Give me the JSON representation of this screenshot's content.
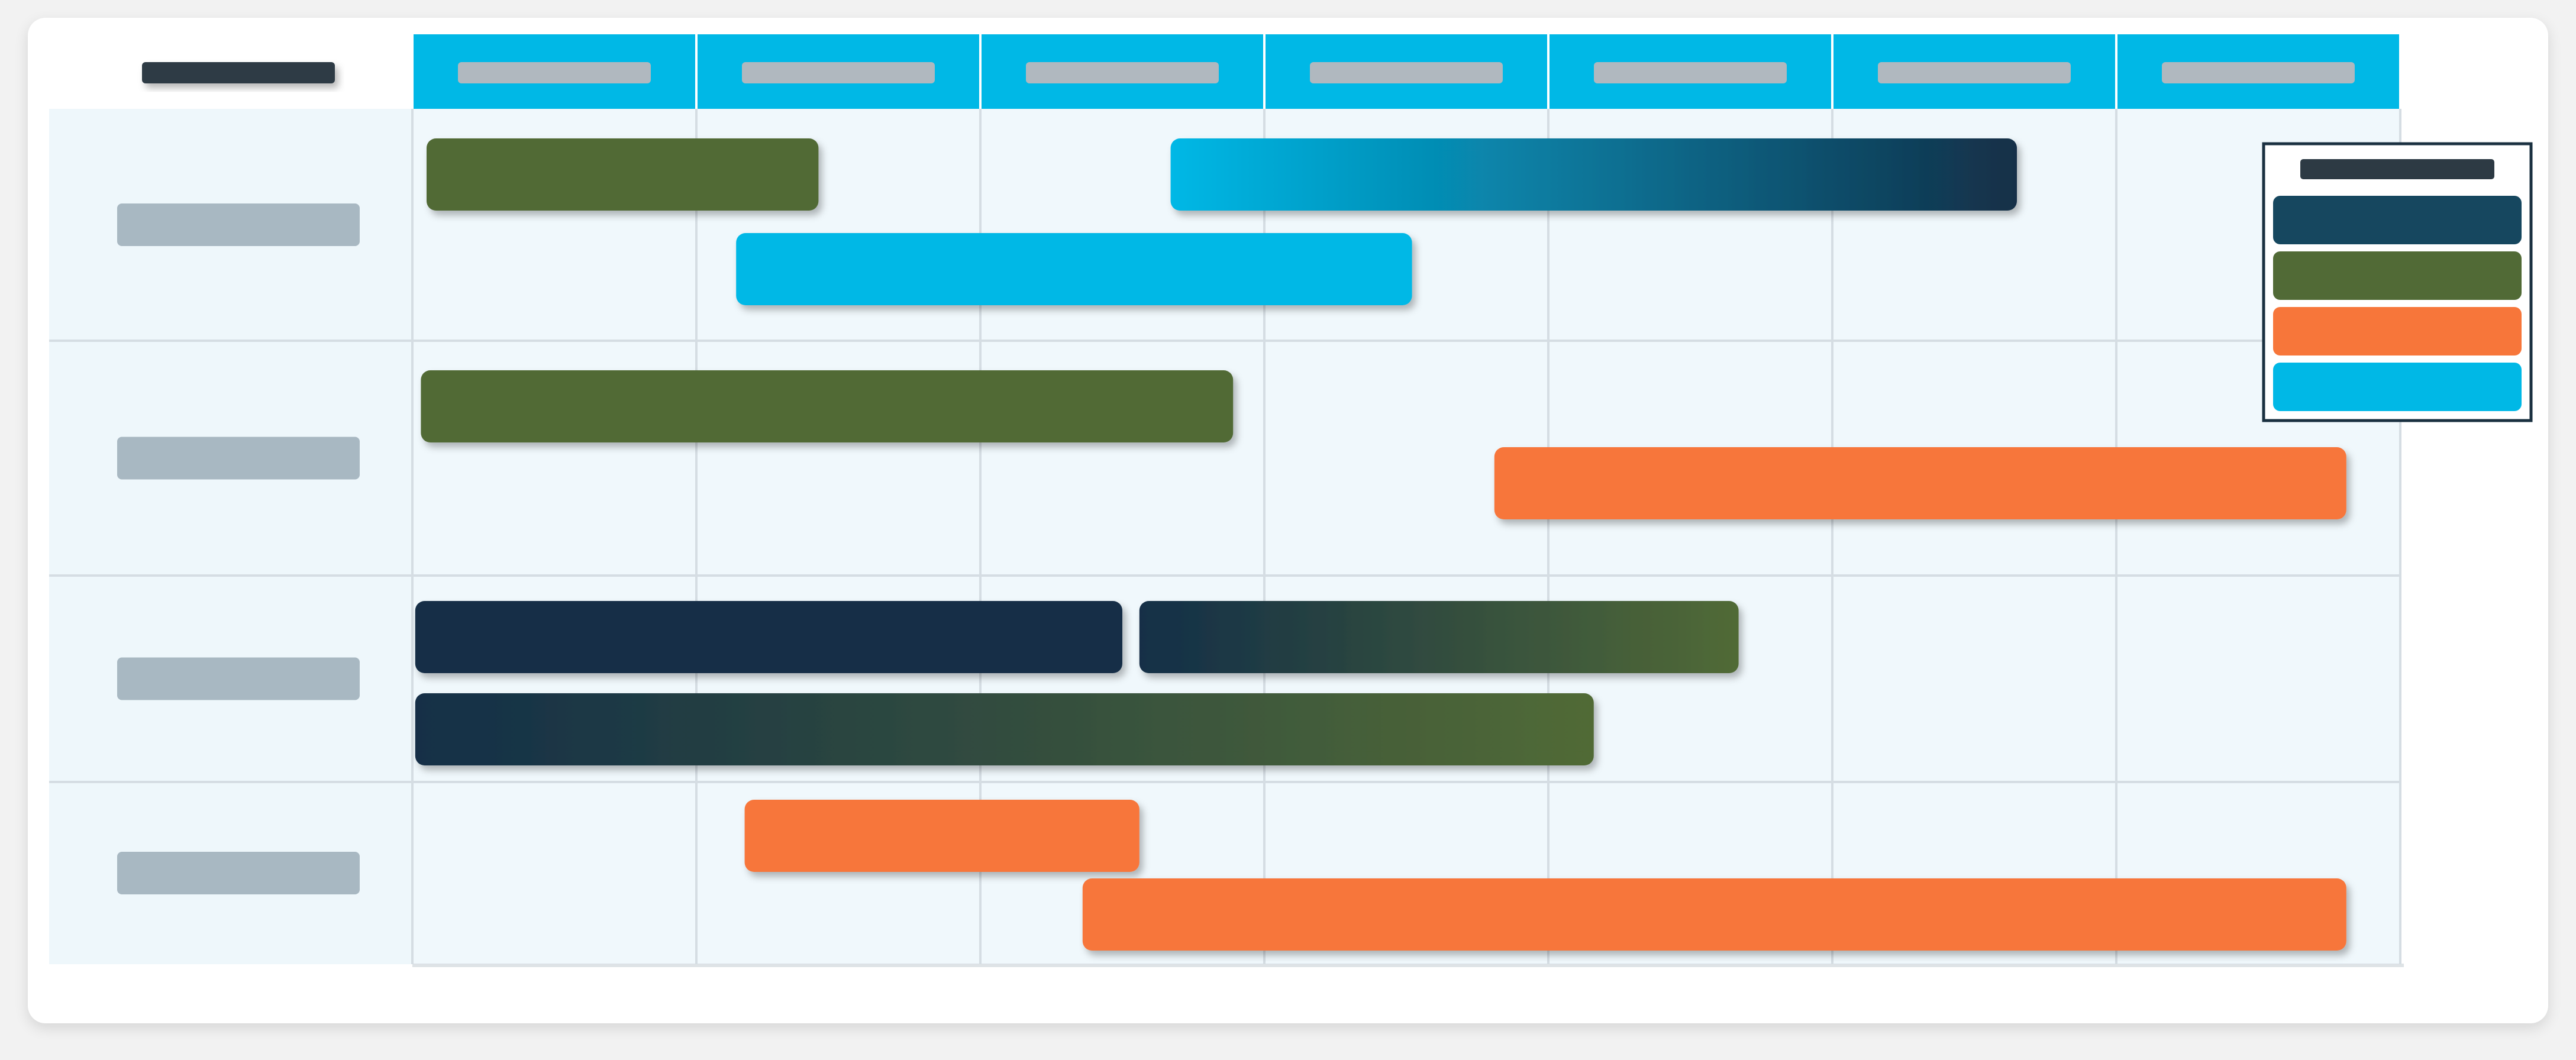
{
  "chart_data": {
    "type": "gantt",
    "title": "",
    "xlabel": "",
    "ylabel": "",
    "columns": [
      "",
      "",
      "",
      "",
      "",
      "",
      ""
    ],
    "rows": [
      "",
      "",
      "",
      ""
    ],
    "x_range": [
      0,
      7
    ],
    "colors": {
      "header_bg": "#00b8e6",
      "header_placeholder": "#b0b8bf",
      "row_label_placeholder": "#a8b8c2",
      "cell_bg": "#f0f8fc",
      "row_label_bg": "#eef7fb",
      "grid_line": "#d5dde3",
      "title_placeholder": "#2d3a44",
      "legend_border": "#1a3040",
      "navy": "#132f47",
      "teal": "#16475f",
      "olive": "#516a36",
      "orange": "#f7763a",
      "cyan": "#00b8e6"
    },
    "bars": [
      {
        "row": 0,
        "lane": 0,
        "start": 0.05,
        "end": 1.43,
        "color": "olive"
      },
      {
        "row": 0,
        "lane": 0,
        "start": 2.67,
        "end": 5.65,
        "color": "cyan",
        "gradient_to": "navy"
      },
      {
        "row": 0,
        "lane": 1,
        "start": 1.14,
        "end": 3.52,
        "color": "cyan"
      },
      {
        "row": 1,
        "lane": 0,
        "start": 0.03,
        "end": 2.89,
        "color": "olive"
      },
      {
        "row": 1,
        "lane": 1,
        "start": 3.81,
        "end": 6.81,
        "color": "orange"
      },
      {
        "row": 2,
        "lane": 0,
        "start": 0.01,
        "end": 2.5,
        "color": "navy"
      },
      {
        "row": 2,
        "lane": 0,
        "start": 2.56,
        "end": 4.67,
        "color": "navy",
        "gradient_to": "olive"
      },
      {
        "row": 2,
        "lane": 1,
        "start": 0.01,
        "end": 4.16,
        "color": "navy",
        "gradient_to": "olive"
      },
      {
        "row": 3,
        "lane": 0,
        "start": 1.17,
        "end": 2.56,
        "color": "orange"
      },
      {
        "row": 3,
        "lane": 1,
        "start": 2.36,
        "end": 6.81,
        "color": "orange"
      }
    ],
    "legend": {
      "placement": "right",
      "title": "",
      "items": [
        {
          "name": "",
          "color": "teal"
        },
        {
          "name": "",
          "color": "olive"
        },
        {
          "name": "",
          "color": "orange"
        },
        {
          "name": "",
          "color": "cyan"
        }
      ]
    }
  }
}
